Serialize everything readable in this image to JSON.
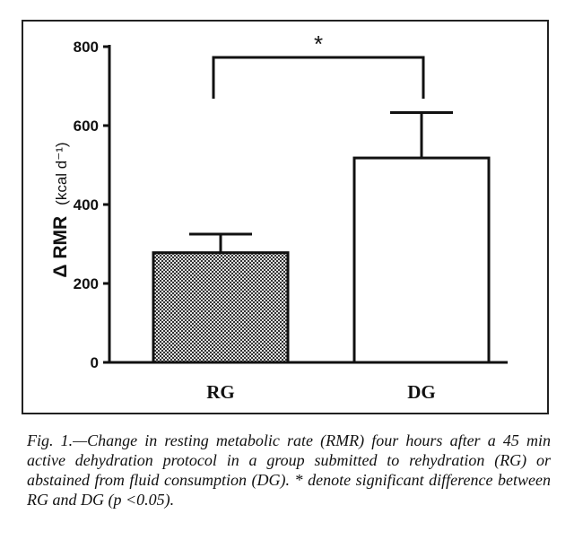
{
  "chart_data": {
    "type": "bar",
    "categories": [
      "RG",
      "DG"
    ],
    "values": [
      278,
      518
    ],
    "errors": [
      47,
      115
    ],
    "ylabel_symbol": "Δ RMR",
    "ylabel_unit": "(kcal d⁻¹)",
    "ylim": [
      0,
      800
    ],
    "yticks": [
      "0",
      "200",
      "400",
      "600",
      "800"
    ],
    "significance": {
      "between": [
        "RG",
        "DG"
      ],
      "marker": "*"
    },
    "bar_fills": [
      "checkered-gray",
      "#ffffff"
    ],
    "grid": false
  },
  "caption": "Fig. 1.—Change in resting metabolic rate (RMR) four hours after a 45 min active dehydration protocol in a group submitted to rehydration (RG) or abstained from fluid consumption (DG). * denote significant difference between RG and DG (p <0.05)."
}
